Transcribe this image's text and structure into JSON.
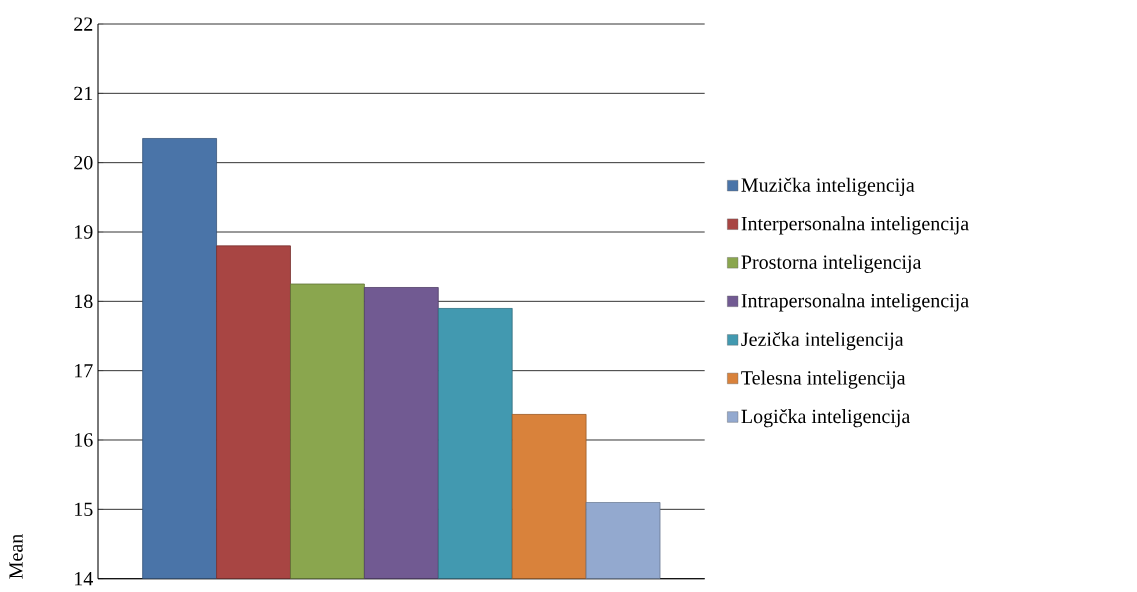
{
  "chart_data": {
    "type": "bar",
    "ylabel": "Mean",
    "categories": [
      null
    ],
    "series": [
      {
        "name": "Muzička inteligencija",
        "color": "#4a74a8",
        "values": [
          20.35
        ]
      },
      {
        "name": "Interpersonalna inteligencija",
        "color": "#a84543",
        "values": [
          18.8
        ]
      },
      {
        "name": "Prostorna inteligencija",
        "color": "#8aa64e",
        "values": [
          18.25
        ]
      },
      {
        "name": "Intrapersonalna inteligencija",
        "color": "#715a92",
        "values": [
          18.2
        ]
      },
      {
        "name": "Jezička inteligencija",
        "color": "#4299b0",
        "values": [
          17.9
        ]
      },
      {
        "name": "Telesna inteligencija",
        "color": "#d9823b",
        "values": [
          16.37
        ]
      },
      {
        "name": "Logička inteligencija",
        "color": "#93a9cf",
        "values": [
          15.1
        ]
      }
    ],
    "ylim": [
      14,
      22
    ],
    "yticks": [
      14,
      15,
      16,
      17,
      18,
      19,
      20,
      21,
      22
    ],
    "grid": "y",
    "legend": "right",
    "tick_labels": "y"
  }
}
